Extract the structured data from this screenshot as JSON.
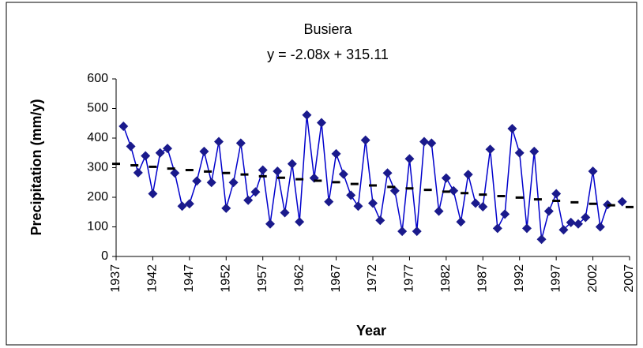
{
  "chart_data": {
    "type": "line",
    "title": "Busiera",
    "subtitle": "y = -2.08x + 315.11",
    "y_label": "Precipitation (mm/y)",
    "x_label": "Year",
    "xlim": [
      1937,
      2007
    ],
    "xticks": [
      1937,
      1942,
      1947,
      1952,
      1957,
      1962,
      1967,
      1972,
      1977,
      1982,
      1987,
      1992,
      1997,
      2002,
      2007
    ],
    "ylim": [
      0,
      600
    ],
    "yticks": [
      0,
      100,
      200,
      300,
      400,
      500,
      600
    ],
    "series": [
      {
        "color": "#0000cc",
        "marker_color": "#1a1a8c",
        "x": [
          1938,
          1939,
          1940,
          1941,
          1942,
          1943,
          1944,
          1945,
          1946,
          1947,
          1948,
          1949,
          1950,
          1951,
          1952,
          1953,
          1954,
          1955,
          1956,
          1957,
          1958,
          1959,
          1960,
          1961,
          1962,
          1963,
          1964,
          1965,
          1966,
          1967,
          1968,
          1969,
          1970,
          1971,
          1972,
          1973,
          1974,
          1975,
          1976,
          1977,
          1978,
          1979,
          1980,
          1981,
          1982,
          1983,
          1984,
          1985,
          1986,
          1987,
          1988,
          1989,
          1990,
          1991,
          1992,
          1993,
          1994,
          1995,
          1996,
          1997,
          1998,
          1999,
          2000,
          2001,
          2002,
          2003,
          2004,
          2005,
          2006
        ],
        "values": [
          440,
          372,
          283,
          340,
          212,
          350,
          365,
          282,
          170,
          178,
          255,
          355,
          250,
          388,
          163,
          250,
          383,
          190,
          218,
          292,
          110,
          288,
          148,
          313,
          117,
          478,
          265,
          452,
          185,
          347,
          278,
          207,
          170,
          393,
          180,
          122,
          282,
          222,
          85,
          330,
          85,
          388,
          383,
          153,
          265,
          222,
          117,
          277,
          180,
          168,
          362,
          95,
          143,
          432,
          350,
          95,
          355,
          58,
          153,
          212,
          90,
          115,
          110,
          132,
          288,
          100,
          175,
          null,
          185
        ]
      },
      {
        "color": "#000000",
        "x": [
          1937,
          1939.5,
          1942,
          1944.5,
          1947,
          1949.5,
          1952,
          1954.5,
          1957,
          1959.5,
          1962,
          1964.5,
          1967,
          1969.5,
          1972,
          1974.5,
          1977,
          1979.5,
          1982,
          1984.5,
          1987,
          1989.5,
          1992,
          1994.5,
          1997,
          1999.5,
          2002,
          2004.5,
          2007
        ],
        "values": [
          313,
          308,
          303,
          297,
          292,
          287,
          282,
          277,
          271,
          266,
          261,
          256,
          251,
          245,
          240,
          235,
          230,
          225,
          219,
          214,
          209,
          204,
          199,
          193,
          188,
          183,
          178,
          173,
          167
        ]
      }
    ]
  }
}
